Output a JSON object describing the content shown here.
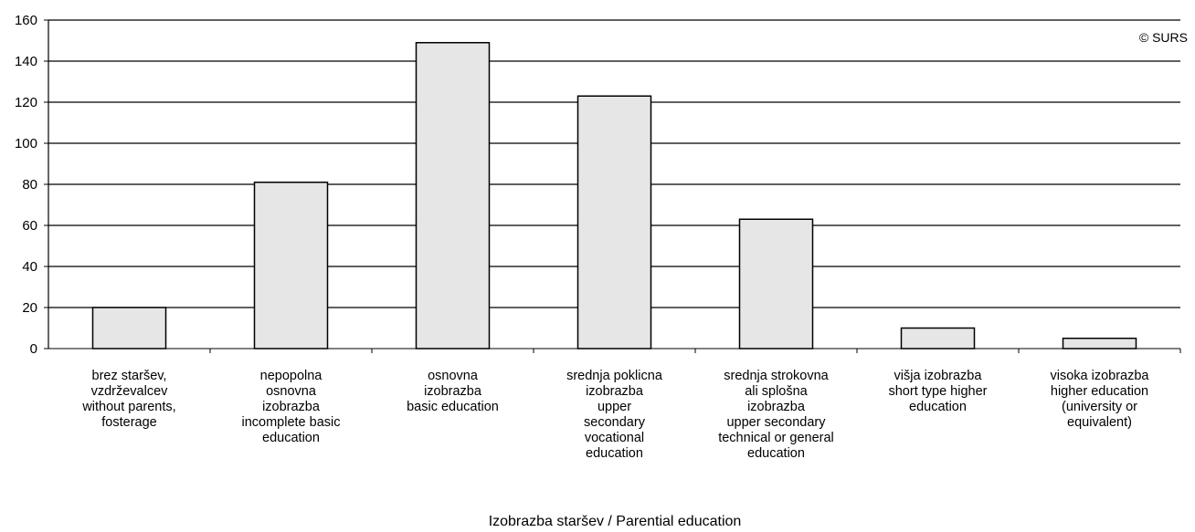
{
  "chart_data": {
    "type": "bar",
    "categories": [
      "brez staršev,\nvzdrževalcev\nwithout parents,\nfosterage",
      "nepopolna\nosnovna\nizobrazba\nincomplete basic\neducation",
      "osnovna\nizobrazba\nbasic education",
      "srednja poklicna\nizobrazba\nupper\nsecondary\nvocational\neducation",
      "srednja strokovna\nali splošna\nizobrazba\nupper secondary\ntechnical or general\neducation",
      "višja izobrazba\nshort type higher\neducation",
      "visoka izobrazba\nhigher education\n(university or\nequivalent)"
    ],
    "values": [
      20,
      81,
      149,
      123,
      63,
      10,
      5
    ],
    "title": "",
    "xlabel": "Izobrazba staršev / Parential education",
    "ylabel": "",
    "ylim": [
      0,
      160
    ],
    "yticks": [
      0,
      20,
      40,
      60,
      80,
      100,
      120,
      140,
      160
    ],
    "grid": true,
    "legend": "none",
    "annotation": "© SURS",
    "colors": {
      "bar_fill": "#e6e6e6",
      "bar_stroke": "#000000",
      "grid": "#000000"
    }
  }
}
